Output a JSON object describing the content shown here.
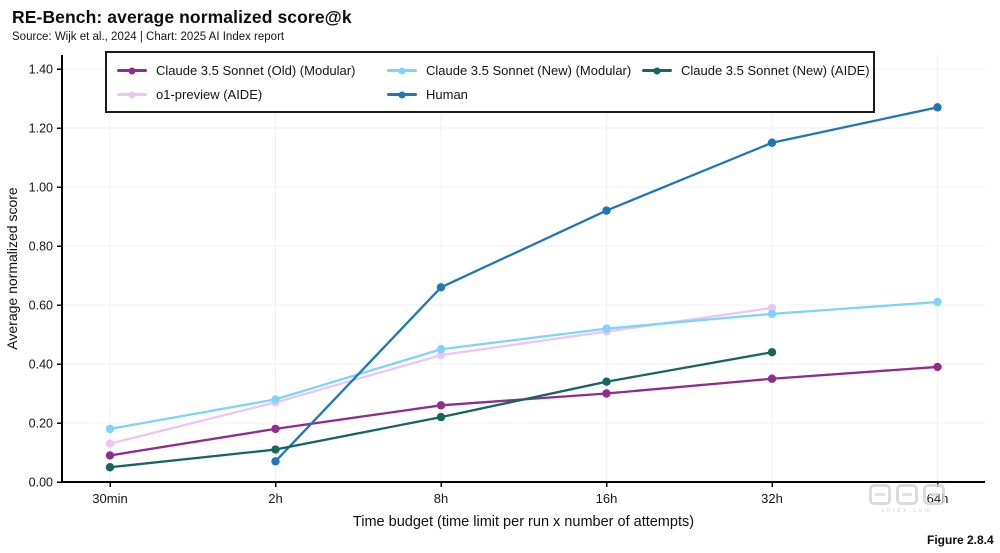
{
  "header": {
    "title": "RE-Bench: average normalized score@k",
    "subtitle": "Source: Wijk et al., 2024 | Chart: 2025 AI Index report"
  },
  "figure_label": "Figure 2.8.4",
  "watermark": {
    "text": "智东西",
    "subtext": "zhidx.com"
  },
  "legend": {
    "display_order": [
      0,
      2,
      4,
      1,
      3
    ]
  },
  "chart_data": {
    "type": "line",
    "title": "RE-Bench: average normalized score@k",
    "xlabel": "Time budget (time limit per run x number of attempts)",
    "ylabel": "Average normalized score",
    "categories": [
      "30min",
      "2h",
      "8h",
      "16h",
      "32h",
      "64h"
    ],
    "ylim": [
      0.0,
      1.4
    ],
    "ytick_step": 0.2,
    "yticks": [
      "0.00",
      "0.20",
      "0.40",
      "0.60",
      "0.80",
      "1.00",
      "1.20",
      "1.40"
    ],
    "grid": true,
    "legend_position": "top",
    "series": [
      {
        "name": "Claude 3.5 Sonnet (Old) (Modular)",
        "color": "#8e2c90",
        "values": [
          0.09,
          0.18,
          0.26,
          0.3,
          0.35,
          0.39
        ]
      },
      {
        "name": "o1-preview (AIDE)",
        "color": "#ecc5f3",
        "values": [
          0.13,
          0.27,
          0.43,
          0.51,
          0.59,
          null
        ]
      },
      {
        "name": "Claude 3.5 Sonnet (New) (Modular)",
        "color": "#7cd5f7",
        "values": [
          0.18,
          0.28,
          0.45,
          0.52,
          0.57,
          0.61
        ]
      },
      {
        "name": "Human",
        "color": "#1f77b4",
        "values": [
          null,
          0.07,
          0.66,
          0.92,
          1.15,
          1.27
        ]
      },
      {
        "name": "Claude 3.5 Sonnet (New) (AIDE)",
        "color": "#17655f",
        "values": [
          0.05,
          0.11,
          0.22,
          0.34,
          0.44,
          null
        ]
      }
    ]
  }
}
